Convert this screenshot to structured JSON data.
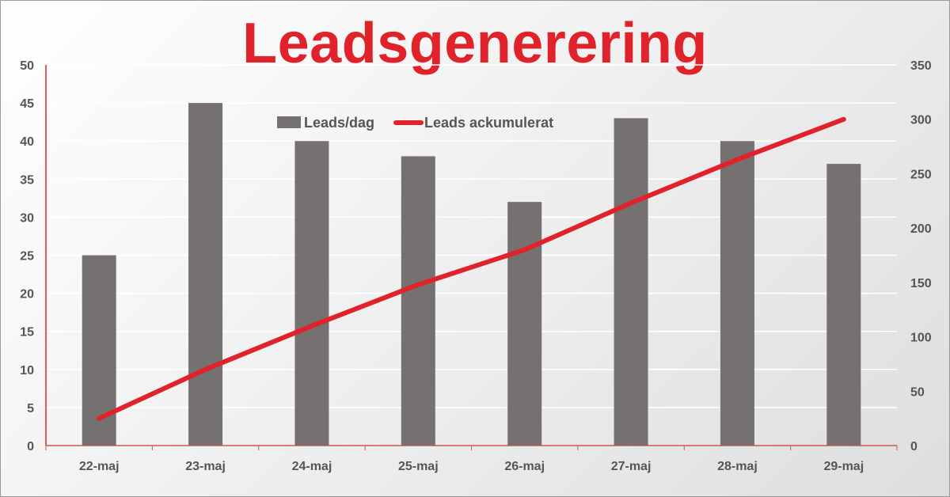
{
  "chart_data": {
    "type": "bar",
    "title": "Leadsgenerering",
    "categories": [
      "22-maj",
      "23-maj",
      "24-maj",
      "25-maj",
      "26-maj",
      "27-maj",
      "28-maj",
      "29-maj"
    ],
    "series": [
      {
        "name": "Leads/dag",
        "type": "bar",
        "axis": "left",
        "color": "#767171",
        "values": [
          25,
          45,
          40,
          38,
          32,
          43,
          40,
          37
        ]
      },
      {
        "name": "Leads ackumulerat",
        "type": "line",
        "axis": "right",
        "color": "#e0222a",
        "values": [
          25,
          70,
          110,
          148,
          180,
          223,
          263,
          300
        ]
      }
    ],
    "y_left": {
      "min": 0,
      "max": 50,
      "step": 5
    },
    "y_right": {
      "min": 0,
      "max": 350,
      "step": 50
    },
    "grid": true,
    "legend_position": "top-center",
    "colors": {
      "title": "#e0222a",
      "axis_left": "#e0222a",
      "ticks": "#555555",
      "grid": "#ffffff"
    }
  }
}
